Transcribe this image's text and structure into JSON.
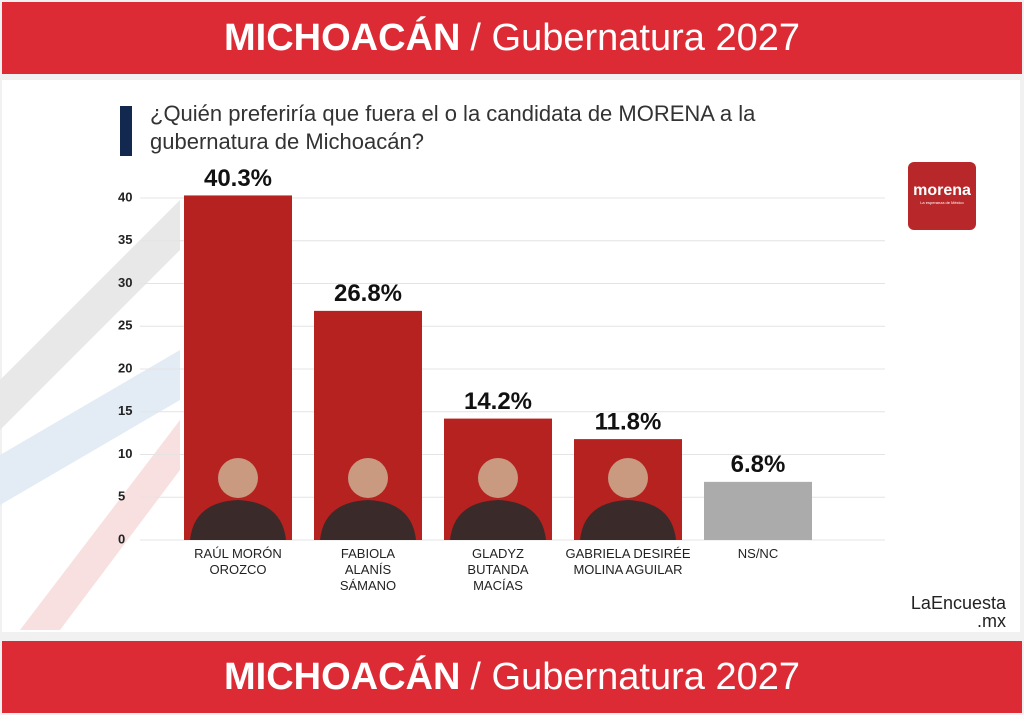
{
  "chart_data": {
    "type": "bar",
    "header": {
      "bold": "MICHOACÁN",
      "rest": "/ Gubernatura 2027"
    },
    "title": "¿Quién preferiría que fuera el o la candidata de MORENA a la gubernatura de Michoacán?",
    "logo": {
      "name": "morena",
      "tagline": "La esperanza de México"
    },
    "source": {
      "name": "LaEncuesta",
      "suffix": ".mx"
    },
    "categories": [
      "RAÚL MORÓN OROZCO",
      "FABIOLA ALANÍS SÁMANO",
      "GLADYZ BUTANDA MACÍAS",
      "GABRIELA DESIRÉE MOLINA AGUILAR",
      "NS/NC"
    ],
    "values": [
      40.3,
      26.8,
      14.2,
      11.8,
      6.8
    ],
    "value_labels": [
      "40.3%",
      "26.8%",
      "14.2%",
      "11.8%",
      "6.8%"
    ],
    "colors": [
      "#b52220",
      "#b52220",
      "#b52220",
      "#b52220",
      "#ababab"
    ],
    "ylim": [
      0,
      40
    ],
    "yticks": [
      0,
      5,
      10,
      15,
      20,
      25,
      30,
      35,
      40
    ],
    "grid": true
  }
}
